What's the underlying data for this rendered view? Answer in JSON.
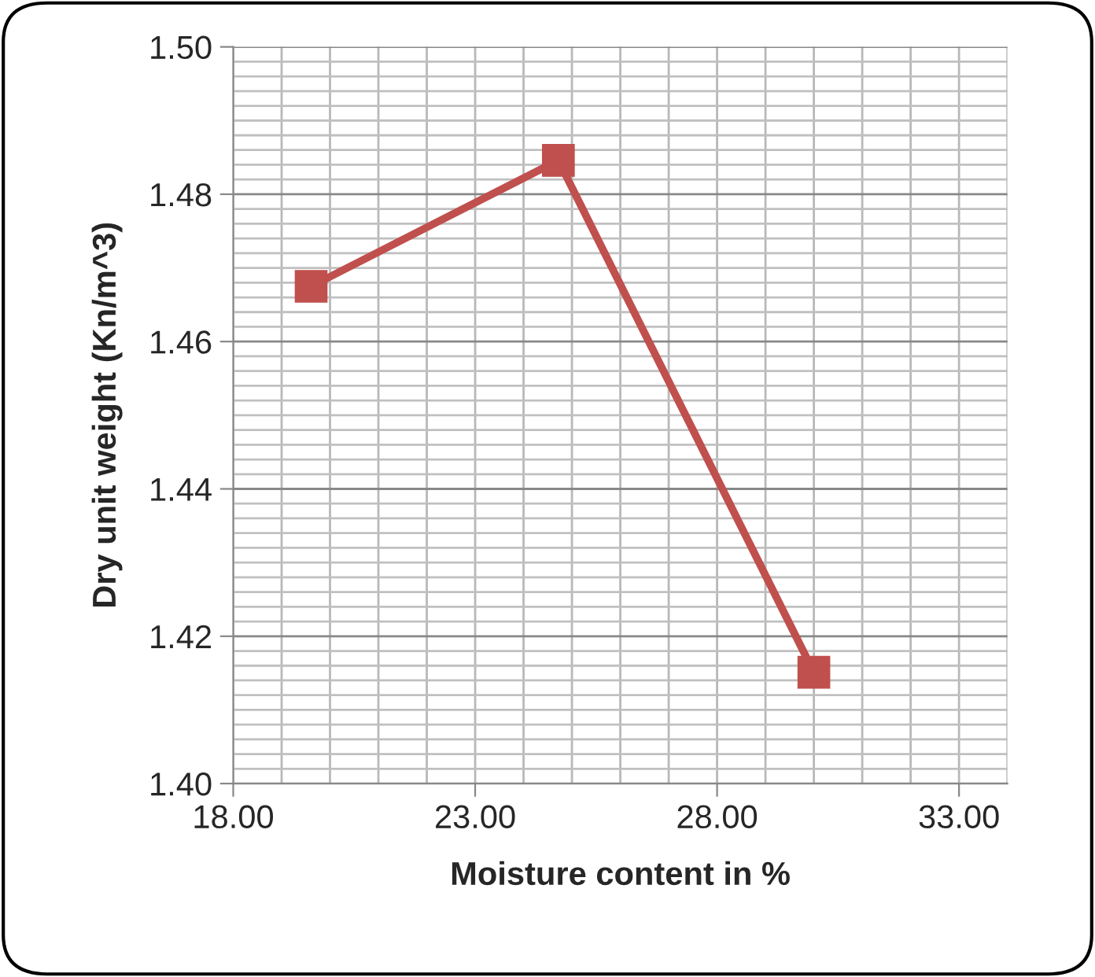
{
  "chart_data": {
    "type": "line",
    "xlabel": "Moisture content in %",
    "ylabel": "Dry unit weight (Kn/m^3)",
    "x": [
      19.61,
      24.72,
      30.0
    ],
    "series": [
      {
        "color": "#c0504d",
        "values": [
          1.4675,
          1.4846,
          1.4151
        ]
      }
    ],
    "marker": "square",
    "line_style": "solid",
    "grid": true,
    "xlim": [
      18,
      34
    ],
    "xticks": [
      {
        "value": 18,
        "label": "18.00"
      },
      {
        "value": 23,
        "label": "23.00"
      },
      {
        "value": 28,
        "label": "28.00"
      },
      {
        "value": 33,
        "label": "33.00"
      }
    ],
    "ylim": [
      1.4,
      1.5
    ],
    "yticks": [
      {
        "value": 1.4,
        "label": "1.40"
      },
      {
        "value": 1.42,
        "label": "1.42"
      },
      {
        "value": 1.44,
        "label": "1.44"
      },
      {
        "value": 1.46,
        "label": "1.46"
      },
      {
        "value": 1.48,
        "label": "1.48"
      },
      {
        "value": 1.5,
        "label": "1.50"
      }
    ]
  }
}
